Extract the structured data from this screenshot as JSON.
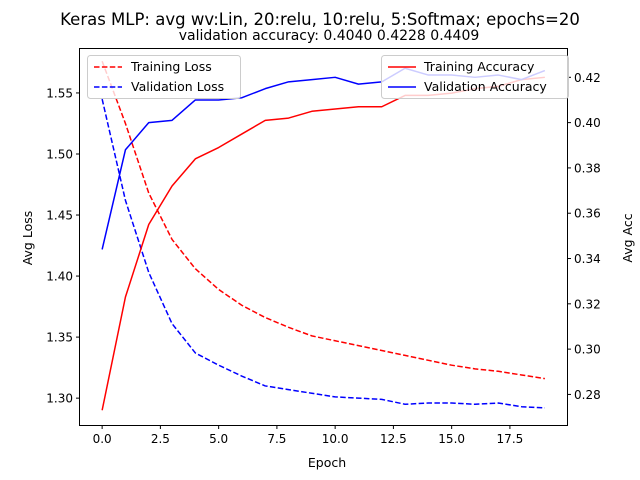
{
  "chart_data": {
    "type": "line",
    "title": "Keras MLP: avg wv:Lin, 20:relu, 10:relu, 5:Softmax; epochs=20",
    "subtitle": "validation accuracy:  0.4040  0.4228  0.4409",
    "xlabel": "Epoch",
    "ylabel_left": "Avg Loss",
    "ylabel_right": "Avg Acc",
    "x": [
      0,
      1,
      2,
      3,
      4,
      5,
      6,
      7,
      8,
      9,
      10,
      11,
      12,
      13,
      14,
      15,
      16,
      17,
      18,
      19
    ],
    "xlim": [
      -0.95,
      19.95
    ],
    "ylim_left": [
      1.278,
      1.586
    ],
    "ylim_right": [
      0.2665,
      0.4325
    ],
    "xticks": [
      {
        "value": 0,
        "label": "0.0"
      },
      {
        "value": 2.5,
        "label": "2.5"
      },
      {
        "value": 5,
        "label": "5.0"
      },
      {
        "value": 7.5,
        "label": "7.5"
      },
      {
        "value": 10,
        "label": "10.0"
      },
      {
        "value": 12.5,
        "label": "12.5"
      },
      {
        "value": 15,
        "label": "15.0"
      },
      {
        "value": 17.5,
        "label": "17.5"
      }
    ],
    "yticks_left": [
      {
        "value": 1.3,
        "label": "1.30"
      },
      {
        "value": 1.35,
        "label": "1.35"
      },
      {
        "value": 1.4,
        "label": "1.40"
      },
      {
        "value": 1.45,
        "label": "1.45"
      },
      {
        "value": 1.5,
        "label": "1.50"
      },
      {
        "value": 1.55,
        "label": "1.55"
      }
    ],
    "yticks_right": [
      {
        "value": 0.28,
        "label": "0.28"
      },
      {
        "value": 0.3,
        "label": "0.30"
      },
      {
        "value": 0.32,
        "label": "0.32"
      },
      {
        "value": 0.34,
        "label": "0.34"
      },
      {
        "value": 0.36,
        "label": "0.36"
      },
      {
        "value": 0.38,
        "label": "0.38"
      },
      {
        "value": 0.4,
        "label": "0.40"
      },
      {
        "value": 0.42,
        "label": "0.42"
      }
    ],
    "series": [
      {
        "name": "Training Loss",
        "axis": "left",
        "color": "#ff0000",
        "dash": true,
        "values": [
          1.576,
          1.525,
          1.468,
          1.43,
          1.406,
          1.389,
          1.376,
          1.366,
          1.358,
          1.351,
          1.347,
          1.343,
          1.339,
          1.335,
          1.331,
          1.327,
          1.324,
          1.322,
          1.319,
          1.316
        ]
      },
      {
        "name": "Validation Loss",
        "axis": "left",
        "color": "#0000ff",
        "dash": true,
        "values": [
          1.545,
          1.462,
          1.403,
          1.361,
          1.337,
          1.327,
          1.318,
          1.31,
          1.307,
          1.304,
          1.301,
          1.3,
          1.299,
          1.295,
          1.296,
          1.296,
          1.295,
          1.296,
          1.293,
          1.292
        ]
      },
      {
        "name": "Training Accuracy",
        "axis": "right",
        "color": "#ff0000",
        "dash": false,
        "values": [
          0.273,
          0.323,
          0.355,
          0.372,
          0.384,
          0.389,
          0.395,
          0.401,
          0.402,
          0.405,
          0.406,
          0.407,
          0.407,
          0.412,
          0.412,
          0.413,
          0.415,
          0.416,
          0.419,
          0.42
        ]
      },
      {
        "name": "Validation Accuracy",
        "axis": "right",
        "color": "#0000ff",
        "dash": false,
        "values": [
          0.344,
          0.388,
          0.4,
          0.401,
          0.41,
          0.41,
          0.411,
          0.415,
          0.418,
          0.419,
          0.42,
          0.417,
          0.418,
          0.424,
          0.421,
          0.421,
          0.42,
          0.421,
          0.419,
          0.423
        ]
      }
    ],
    "legend_left": {
      "placement": "upper-left",
      "entries": [
        "Training Loss",
        "Validation Loss"
      ]
    },
    "legend_right": {
      "placement": "upper-right",
      "entries": [
        "Training Accuracy",
        "Validation Accuracy"
      ]
    }
  }
}
